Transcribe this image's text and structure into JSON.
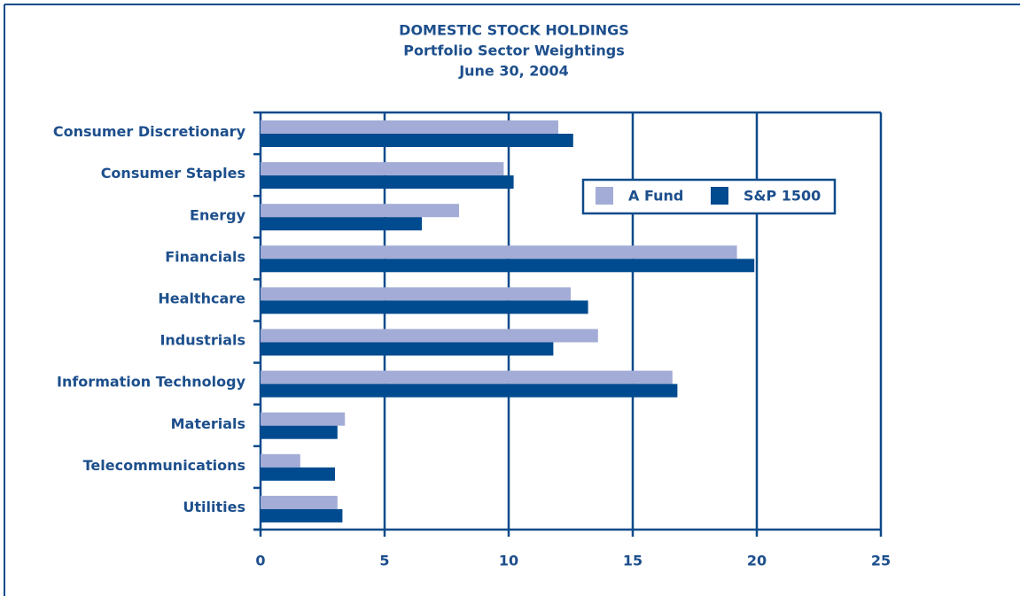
{
  "chart_data": {
    "type": "bar",
    "orientation": "horizontal",
    "title": "DOMESTIC STOCK HOLDINGS",
    "subtitle": "Portfolio Sector Weightings",
    "date": "June 30, 2004",
    "categories": [
      "Consumer Discretionary",
      "Consumer Staples",
      "Energy",
      "Financials",
      "Healthcare",
      "Industrials",
      "Information Technology",
      "Materials",
      "Telecommunications",
      "Utilities"
    ],
    "series": [
      {
        "name": "A Fund",
        "color": "#a3acd6",
        "values": [
          12.0,
          9.8,
          8.0,
          19.2,
          12.5,
          13.6,
          16.6,
          3.4,
          1.6,
          3.1
        ]
      },
      {
        "name": "S&P 1500",
        "color": "#004a8f",
        "values": [
          12.6,
          10.2,
          6.5,
          19.9,
          13.2,
          11.8,
          16.8,
          3.1,
          3.0,
          3.3
        ]
      }
    ],
    "xlim": [
      0,
      25
    ],
    "xticks": [
      0,
      5,
      10,
      15,
      20,
      25
    ],
    "grid": true,
    "legend": "upper right"
  }
}
